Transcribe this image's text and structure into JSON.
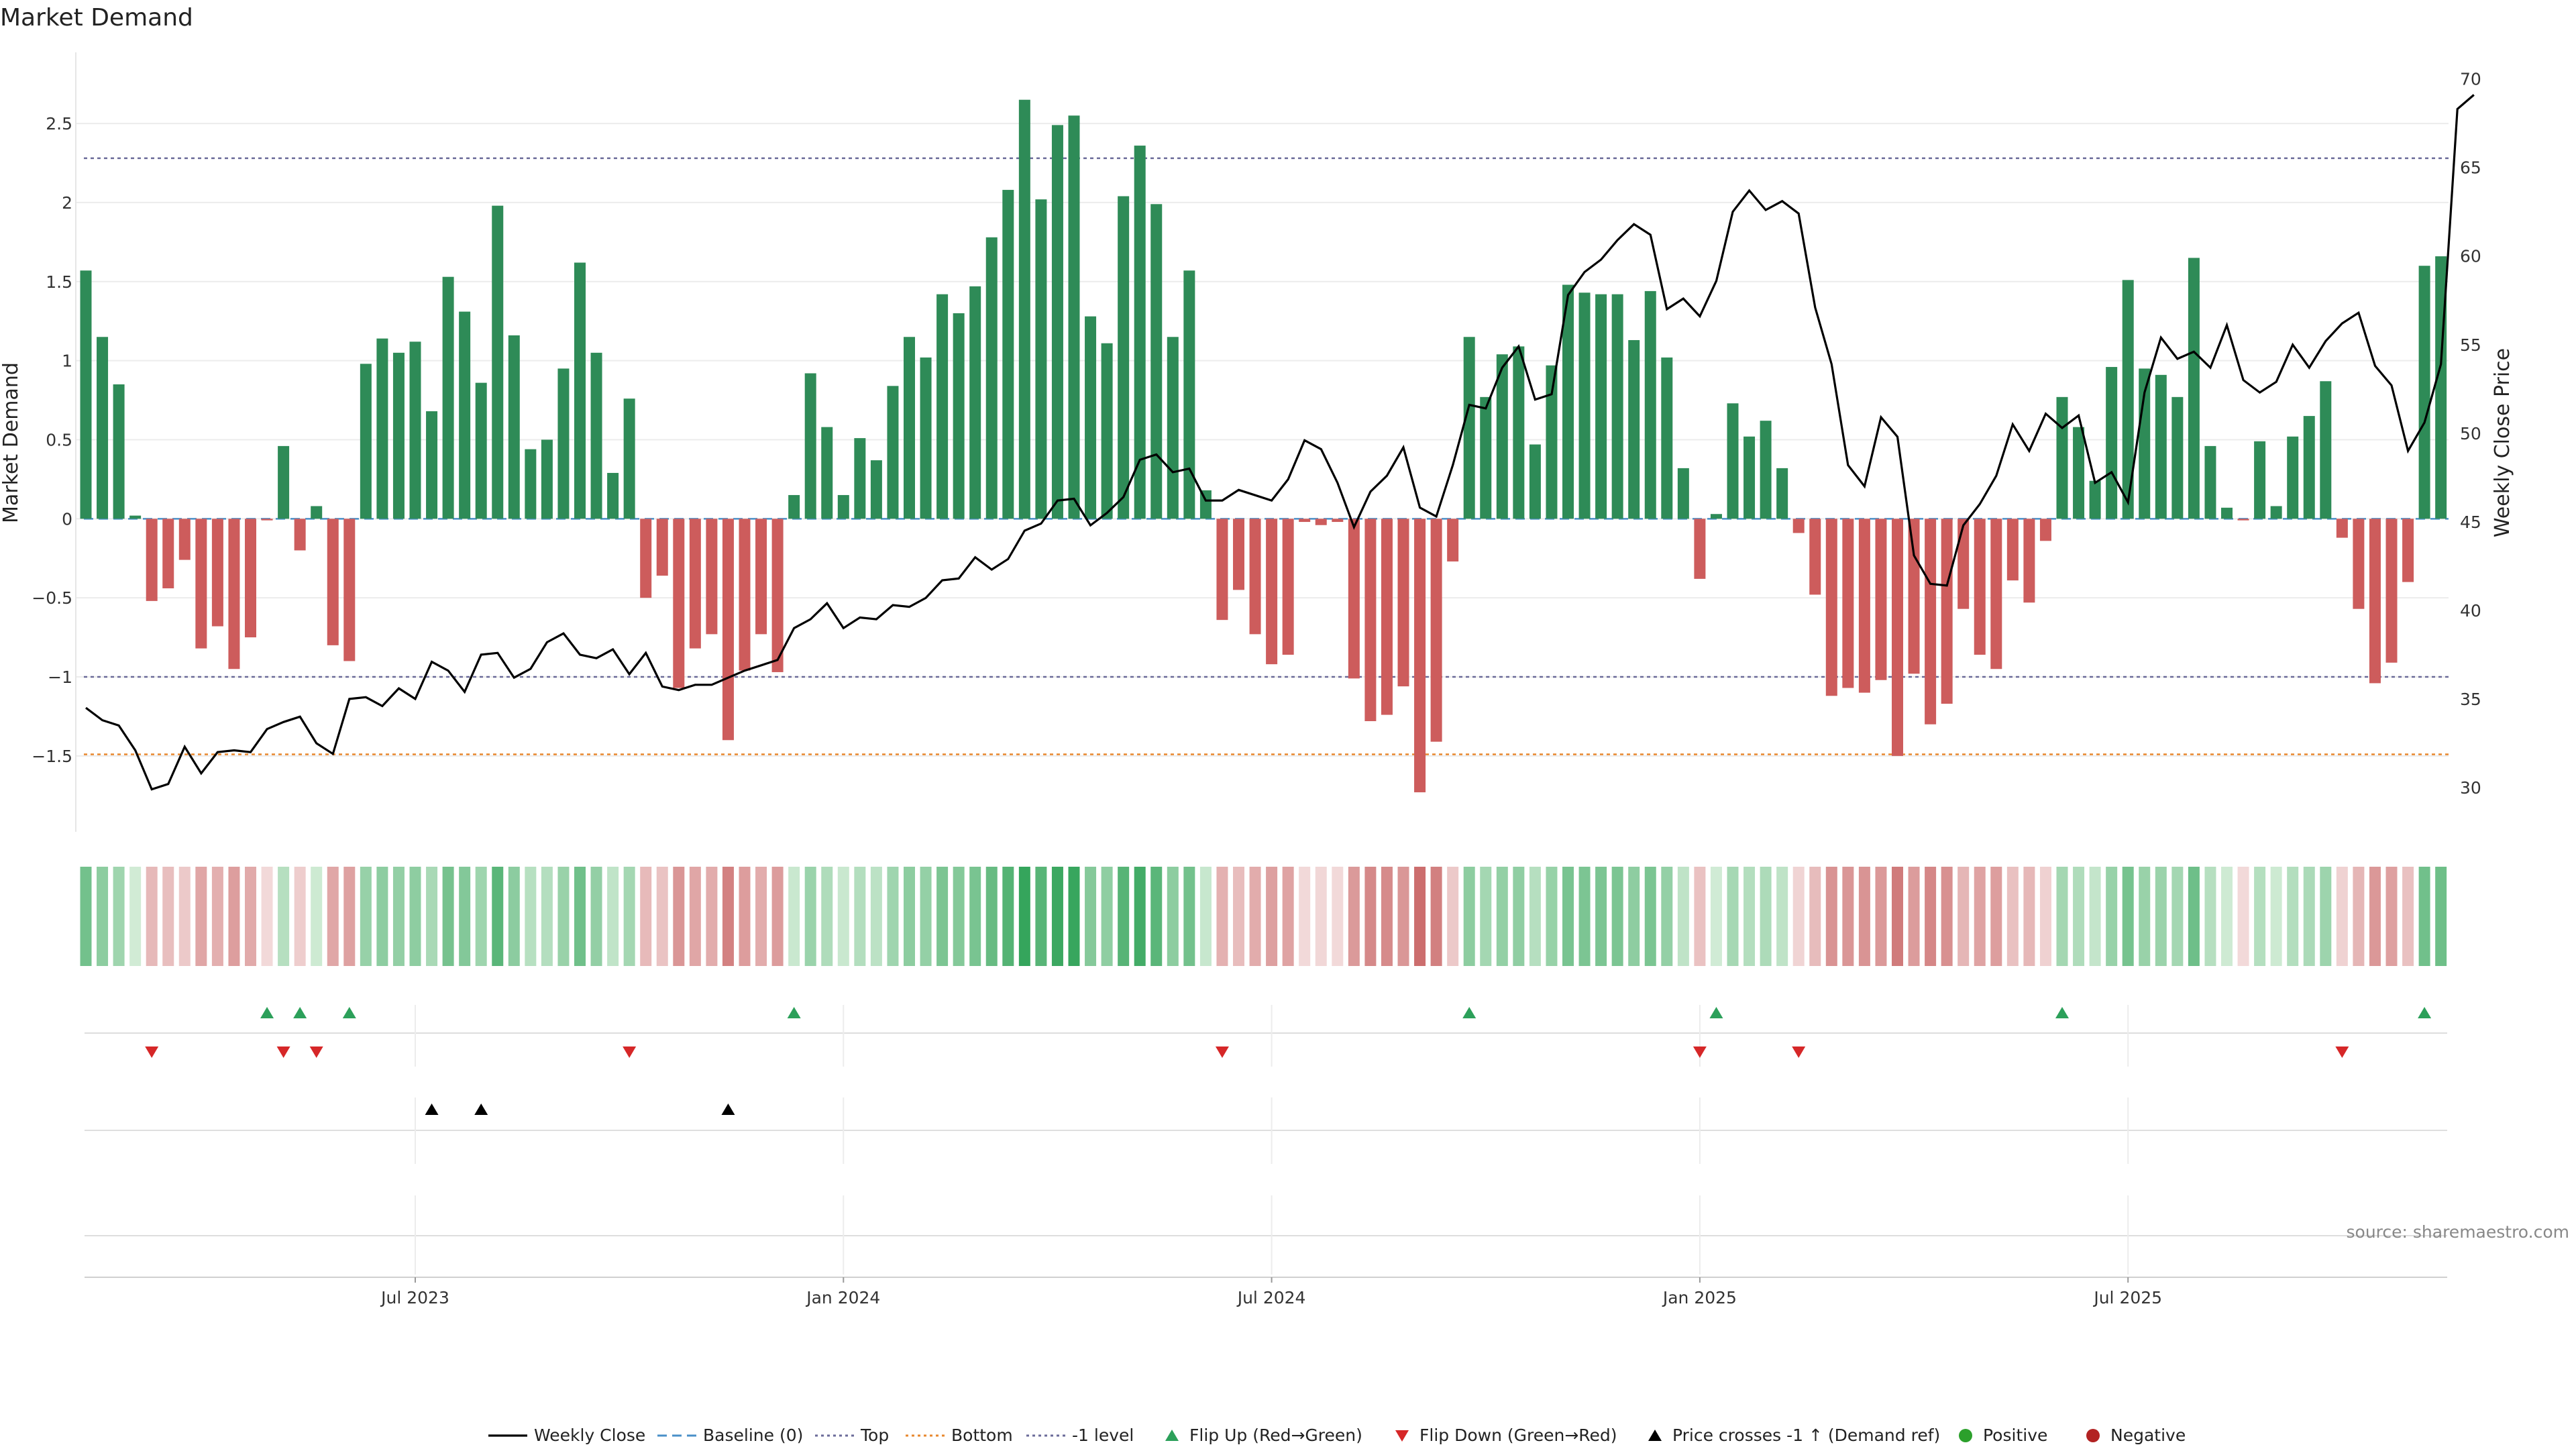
{
  "chart_data": {
    "title": "Market Demand",
    "source": "source: sharemaestro.com",
    "ylabel_left": "Market Demand",
    "ylabel_right": "Weekly Close Price",
    "ylim_left": [
      -1.98,
      2.95
    ],
    "ylim_right": [
      27.5,
      71.5
    ],
    "left_ticks": [
      2.5,
      2,
      1.5,
      1,
      0.5,
      0,
      -0.5,
      -1,
      -1.5
    ],
    "left_tick_labels": [
      "2.5",
      "2",
      "1.5",
      "1",
      "0.5",
      "0",
      "−0.5",
      "−1",
      "−1.5"
    ],
    "right_ticks": [
      70,
      65,
      60,
      55,
      50,
      45,
      40,
      35,
      30
    ],
    "x_tick_labels": [
      {
        "week": 20,
        "label": "Jul 2023"
      },
      {
        "week": 46,
        "label": "Jan 2024"
      },
      {
        "week": 72,
        "label": "Jul 2024"
      },
      {
        "week": 98,
        "label": "Jan 2025"
      },
      {
        "week": 124,
        "label": "Jul 2025"
      }
    ],
    "reference_lines": {
      "top": 2.28,
      "bottom": -1.49,
      "minus_one": -1.0,
      "baseline": 0
    },
    "colors": {
      "positive": "#2e8b57",
      "negative": "#cd5c5c",
      "price": "#000000",
      "top": "#6b6b99",
      "bottom": "#e8882f",
      "minus_one": "#6b6b99",
      "baseline": "#4a90c8",
      "flip_up": "#2ca05a",
      "flip_down": "#d62728",
      "cross": "#000000",
      "pos_dot": "#2ca02c",
      "neg_dot": "#b22222"
    },
    "demand": [
      1.57,
      1.15,
      0.85,
      0.02,
      -0.52,
      -0.44,
      -0.26,
      -0.82,
      -0.68,
      -0.95,
      -0.75,
      -0.01,
      0.46,
      -0.2,
      0.08,
      -0.8,
      -0.9,
      0.98,
      1.14,
      1.05,
      1.12,
      0.68,
      1.53,
      1.31,
      0.86,
      1.98,
      1.16,
      0.44,
      0.5,
      0.95,
      1.62,
      1.05,
      0.29,
      0.76,
      -0.5,
      -0.36,
      -1.07,
      -0.82,
      -0.73,
      -1.4,
      -0.96,
      -0.73,
      -0.97,
      0.15,
      0.92,
      0.58,
      0.15,
      0.51,
      0.37,
      0.84,
      1.15,
      1.02,
      1.42,
      1.3,
      1.47,
      1.78,
      2.08,
      2.65,
      2.02,
      2.49,
      2.55,
      1.28,
      1.11,
      2.04,
      2.36,
      1.99,
      1.15,
      1.57,
      0.18,
      -0.64,
      -0.45,
      -0.73,
      -0.92,
      -0.86,
      -0.02,
      -0.04,
      -0.02,
      -1.01,
      -1.28,
      -1.24,
      -1.06,
      -1.73,
      -1.41,
      -0.27,
      1.15,
      0.77,
      1.04,
      1.09,
      0.47,
      0.97,
      1.48,
      1.43,
      1.42,
      1.42,
      1.13,
      1.44,
      1.02,
      0.32,
      -0.38,
      0.03,
      0.73,
      0.52,
      0.62,
      0.32,
      -0.09,
      -0.48,
      -1.12,
      -1.07,
      -1.1,
      -1.02,
      -1.5,
      -0.98,
      -1.3,
      -1.17,
      -0.57,
      -0.86,
      -0.95,
      -0.39,
      -0.53,
      -0.14,
      0.77,
      0.58,
      0.24,
      0.96,
      1.51,
      0.95,
      0.91,
      0.77,
      1.65,
      0.46,
      0.07,
      -0.01,
      0.49,
      0.08,
      0.52,
      0.65,
      0.87,
      -0.12,
      -0.57,
      -1.04,
      -0.91,
      -0.4,
      1.6,
      1.66
    ],
    "price": [
      34.5,
      33.8,
      33.5,
      32.1,
      29.9,
      30.2,
      32.3,
      30.8,
      32.0,
      32.1,
      32.0,
      33.3,
      33.7,
      34.0,
      32.5,
      31.9,
      35.0,
      35.1,
      34.6,
      35.6,
      35.0,
      37.1,
      36.6,
      35.4,
      37.5,
      37.6,
      36.2,
      36.7,
      38.2,
      38.7,
      37.5,
      37.3,
      37.8,
      36.4,
      37.6,
      35.7,
      35.5,
      35.8,
      35.8,
      36.2,
      36.6,
      36.9,
      37.2,
      39.0,
      39.5,
      40.4,
      39.0,
      39.6,
      39.5,
      40.3,
      40.2,
      40.7,
      41.7,
      41.8,
      43.0,
      42.3,
      42.9,
      44.5,
      44.9,
      46.2,
      46.3,
      44.8,
      45.5,
      46.4,
      48.5,
      48.8,
      47.8,
      48.0,
      46.2,
      46.2,
      46.8,
      46.5,
      46.2,
      47.4,
      49.6,
      49.1,
      47.2,
      44.7,
      46.7,
      47.6,
      49.2,
      45.8,
      45.3,
      48.2,
      51.6,
      51.4,
      53.7,
      54.9,
      51.9,
      52.2,
      57.8,
      59.1,
      59.8,
      60.9,
      61.8,
      61.2,
      57.0,
      57.6,
      56.6,
      58.6,
      62.5,
      63.7,
      62.6,
      63.1,
      62.4,
      57.1,
      53.9,
      48.2,
      47.0,
      50.9,
      49.8,
      43.1,
      41.5,
      41.4,
      44.8,
      46.0,
      47.6,
      50.5,
      49.0,
      51.1,
      50.3,
      51.0,
      47.2,
      47.8,
      46.1,
      52.3,
      55.4,
      54.2,
      54.6,
      53.7,
      56.1,
      53.0,
      52.3,
      52.9,
      55.0,
      53.7,
      55.2,
      56.2,
      56.8,
      53.8,
      52.7,
      49.0,
      50.6,
      53.9,
      68.3,
      69.1
    ],
    "flip_up_weeks": [
      11,
      13,
      16,
      43,
      84,
      99,
      120,
      142
    ],
    "flip_down_weeks": [
      4,
      12,
      14,
      33,
      69,
      98,
      104,
      137
    ],
    "cross_weeks": [
      21,
      24,
      39
    ],
    "legend": [
      "Weekly Close",
      "Baseline (0)",
      "Top",
      "Bottom",
      "-1 level",
      "Flip Up (Red→Green)",
      "Flip Down (Green→Red)",
      "Price crosses -1 ↑ (Demand ref)",
      "Positive",
      "Negative"
    ]
  }
}
